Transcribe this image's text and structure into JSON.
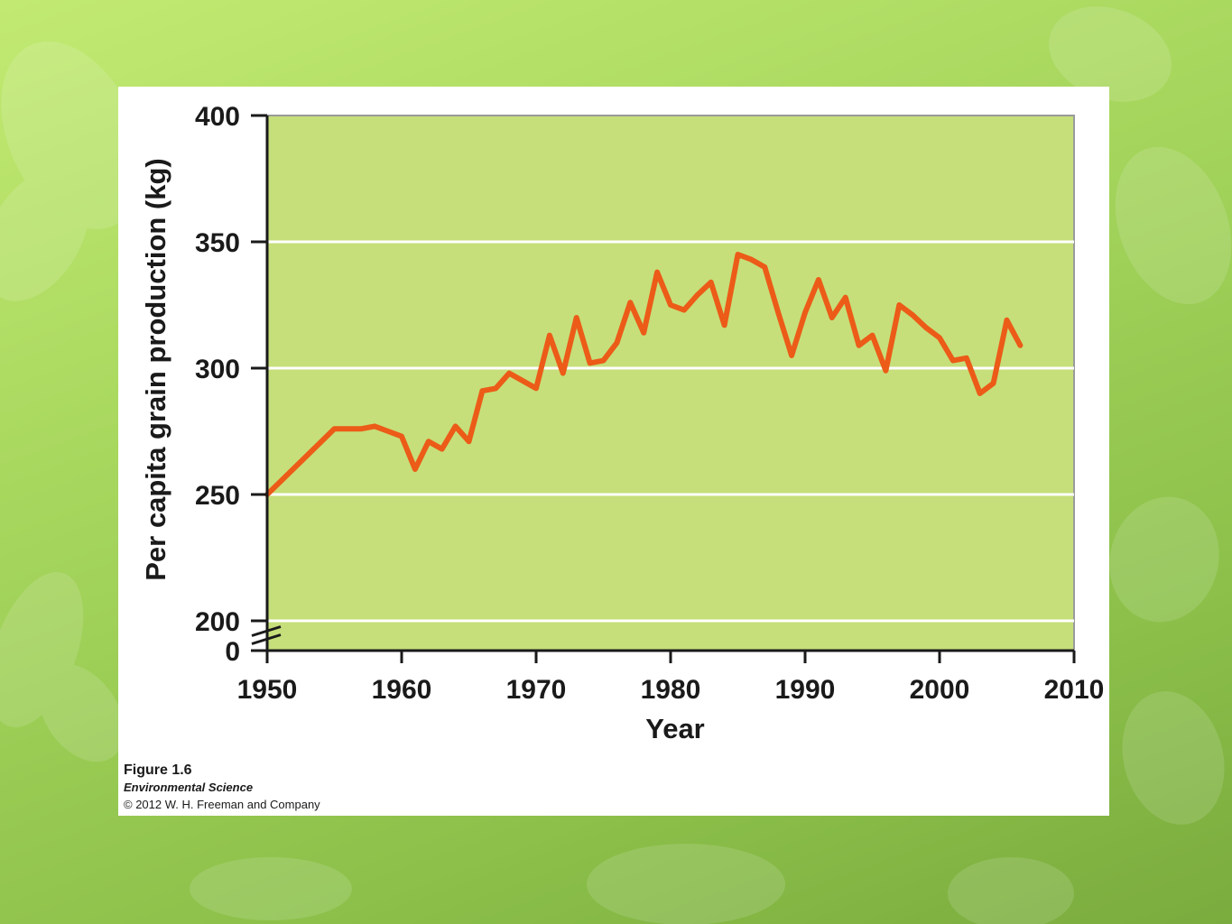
{
  "colors": {
    "plot_background": "#c6df7a",
    "gridline": "#ffffff",
    "series_line": "#ec5b18",
    "axis": "#1a1a1a",
    "plot_border": "#9a9a9a"
  },
  "caption": {
    "figure": "Figure 1.6",
    "book": "Environmental Science",
    "copyright": "© 2012 W. H. Freeman and Company"
  },
  "chart_data": {
    "type": "line",
    "title": "",
    "xlabel": "Year",
    "ylabel": "Per capita grain production (kg)",
    "xlim": [
      1950,
      2010
    ],
    "ylim": [
      0,
      400
    ],
    "y_axis_break": [
      0,
      200
    ],
    "x_ticks": [
      "1950",
      "1960",
      "1970",
      "1980",
      "1990",
      "2000",
      "2010"
    ],
    "y_ticks": [
      "0",
      "200",
      "250",
      "300",
      "350",
      "400"
    ],
    "grid": "horizontal",
    "legend": "none",
    "series": [
      {
        "x": [
          1950,
          1955,
          1956,
          1957,
          1958,
          1959,
          1960,
          1961,
          1962,
          1963,
          1964,
          1965,
          1966,
          1967,
          1968,
          1969,
          1970,
          1971,
          1972,
          1973,
          1974,
          1975,
          1976,
          1977,
          1978,
          1979,
          1980,
          1981,
          1982,
          1983,
          1984,
          1985,
          1986,
          1987,
          1988,
          1989,
          1990,
          1991,
          1992,
          1993,
          1994,
          1995,
          1996,
          1997,
          1998,
          1999,
          2000,
          2001,
          2002,
          2003,
          2004,
          2005,
          2006
        ],
        "values": [
          250,
          276,
          276,
          276,
          277,
          275,
          273,
          260,
          271,
          268,
          277,
          271,
          291,
          292,
          298,
          295,
          292,
          313,
          298,
          320,
          302,
          303,
          310,
          326,
          314,
          338,
          325,
          323,
          329,
          334,
          317,
          345,
          343,
          340,
          322,
          305,
          322,
          335,
          320,
          328,
          309,
          313,
          299,
          325,
          321,
          316,
          312,
          303,
          304,
          290,
          294,
          319,
          309
        ]
      }
    ]
  }
}
